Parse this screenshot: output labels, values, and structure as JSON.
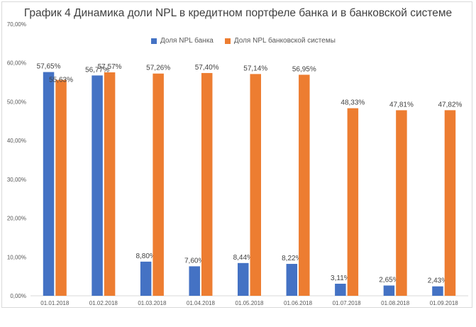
{
  "chart_data": {
    "type": "bar",
    "title": "График 4 Динамика доли NPL в кредитном портфеле банка и в банковской системе",
    "categories": [
      "01.01.2018",
      "01.02.2018",
      "01.03.2018",
      "01.04.2018",
      "01.05.2018",
      "01.06.2018",
      "01.07.2018",
      "01.08.2018",
      "01.09.2018"
    ],
    "series": [
      {
        "name": "Доля NPL банка",
        "color": "#4472c4",
        "values": [
          57.65,
          56.77,
          8.8,
          7.6,
          8.44,
          8.22,
          3.11,
          2.65,
          2.43
        ],
        "labels": [
          "57,65%",
          "56,77%",
          "8,80%",
          "7,60%",
          "8,44%",
          "8,22%",
          "3,11%",
          "2,65%",
          "2,43%"
        ]
      },
      {
        "name": "Доля NPL банковской системы",
        "color": "#ed7d31",
        "values": [
          55.63,
          57.57,
          57.26,
          57.4,
          57.14,
          56.95,
          48.33,
          47.81,
          47.82
        ],
        "labels": [
          "55,63%",
          "57,57%",
          "57,26%",
          "57,40%",
          "57,14%",
          "56,95%",
          "48,33%",
          "47,81%",
          "47,82%"
        ]
      }
    ],
    "ylim": [
      0,
      70
    ],
    "yticks": [
      "0,00%",
      "10,00%",
      "20,00%",
      "30,00%",
      "40,00%",
      "50,00%",
      "60,00%",
      "70,00%"
    ],
    "legend_position": "top-center",
    "grid": false
  }
}
